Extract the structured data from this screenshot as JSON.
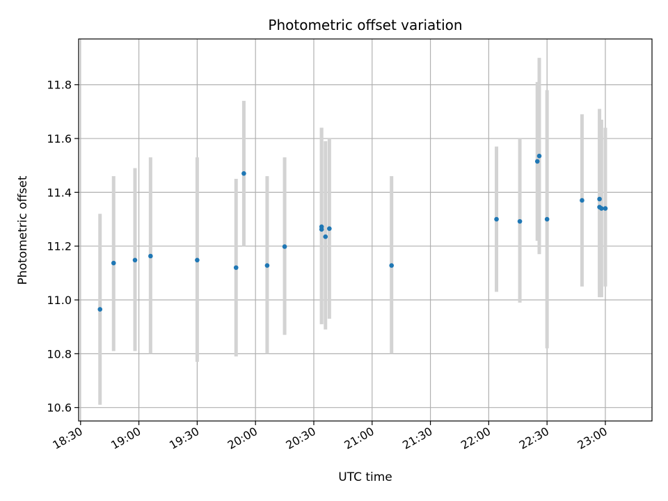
{
  "chart_data": {
    "type": "scatter",
    "title": "Photometric offset variation",
    "xlabel": "UTC time",
    "ylabel": "Photometric offset",
    "grid": true,
    "legend": "none",
    "xlim": [
      "18:29",
      "23:24"
    ],
    "ylim": [
      10.55,
      11.97
    ],
    "x_ticks": [
      "18:30",
      "19:00",
      "19:30",
      "20:00",
      "20:30",
      "21:00",
      "21:30",
      "22:00",
      "22:30",
      "23:00"
    ],
    "y_ticks": [
      "10.6",
      "10.8",
      "11.0",
      "11.2",
      "11.4",
      "11.6",
      "11.8"
    ],
    "colors": {
      "point": "#1f77b4",
      "errorbar": "#d3d3d3",
      "grid": "#b0b0b0"
    },
    "series": [
      {
        "x": [
          "18:40",
          "18:47",
          "18:58",
          "19:06",
          "19:30",
          "19:50",
          "19:54",
          "20:06",
          "20:15",
          "20:34",
          "20:34",
          "20:36",
          "20:38",
          "21:10",
          "22:04",
          "22:16",
          "22:25",
          "22:26",
          "22:30",
          "22:48",
          "22:57",
          "22:57",
          "22:58",
          "23:00"
        ],
        "y": [
          10.965,
          11.137,
          11.148,
          11.163,
          11.148,
          11.12,
          11.47,
          11.128,
          11.198,
          11.272,
          11.262,
          11.235,
          11.265,
          11.128,
          11.3,
          11.292,
          11.515,
          11.535,
          11.3,
          11.37,
          11.375,
          11.345,
          11.34,
          11.34
        ],
        "yerr_low": [
          10.61,
          10.81,
          10.81,
          10.8,
          10.77,
          10.79,
          11.2,
          10.8,
          10.87,
          10.91,
          10.91,
          10.89,
          10.93,
          10.8,
          11.03,
          10.99,
          11.22,
          11.17,
          10.82,
          11.05,
          11.04,
          11.01,
          11.01,
          11.05
        ],
        "yerr_high": [
          11.32,
          11.46,
          11.49,
          11.53,
          11.53,
          11.45,
          11.74,
          11.46,
          11.53,
          11.64,
          11.64,
          11.59,
          11.6,
          11.46,
          11.57,
          11.6,
          11.81,
          11.9,
          11.78,
          11.69,
          11.71,
          11.67,
          11.67,
          11.64
        ]
      }
    ]
  }
}
